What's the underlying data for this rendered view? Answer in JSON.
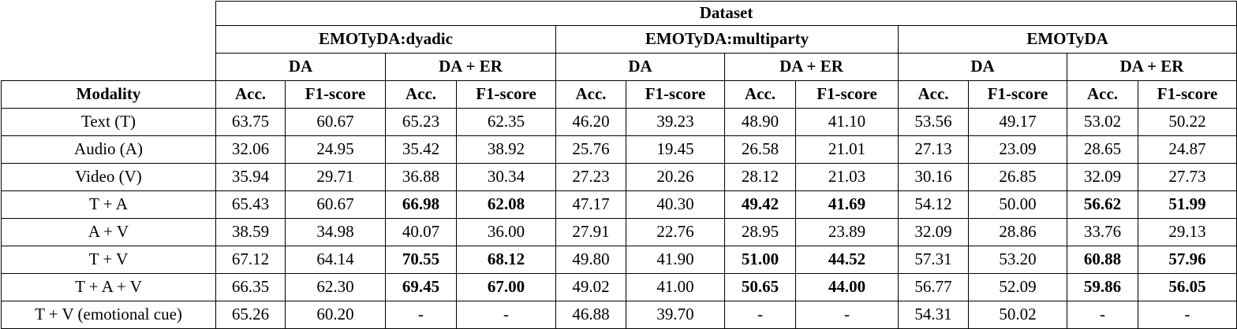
{
  "table": {
    "dataset_header": "Dataset",
    "modality_header": "Modality",
    "metric_headers": [
      "Acc.",
      "F1-score"
    ],
    "groups": [
      {
        "label": "EMOTyDA:dyadic",
        "subgroups": [
          "DA",
          "DA + ER"
        ]
      },
      {
        "label": "EMOTyDA:multiparty",
        "subgroups": [
          "DA",
          "DA + ER"
        ]
      },
      {
        "label": "EMOTyDA",
        "subgroups": [
          "DA",
          "DA + ER"
        ]
      }
    ],
    "rows": [
      {
        "modality": "Text (T)",
        "values": [
          "63.75",
          "60.67",
          "65.23",
          "62.35",
          "46.20",
          "39.23",
          "48.90",
          "41.10",
          "53.56",
          "49.17",
          "53.02",
          "50.22"
        ],
        "bold": [
          0,
          0,
          0,
          0,
          0,
          0,
          0,
          0,
          0,
          0,
          0,
          0
        ]
      },
      {
        "modality": "Audio (A)",
        "values": [
          "32.06",
          "24.95",
          "35.42",
          "38.92",
          "25.76",
          "19.45",
          "26.58",
          "21.01",
          "27.13",
          "23.09",
          "28.65",
          "24.87"
        ],
        "bold": [
          0,
          0,
          0,
          0,
          0,
          0,
          0,
          0,
          0,
          0,
          0,
          0
        ]
      },
      {
        "modality": "Video (V)",
        "values": [
          "35.94",
          "29.71",
          "36.88",
          "30.34",
          "27.23",
          "20.26",
          "28.12",
          "21.03",
          "30.16",
          "26.85",
          "32.09",
          "27.73"
        ],
        "bold": [
          0,
          0,
          0,
          0,
          0,
          0,
          0,
          0,
          0,
          0,
          0,
          0
        ]
      },
      {
        "modality": "T + A",
        "values": [
          "65.43",
          "60.67",
          "66.98",
          "62.08",
          "47.17",
          "40.30",
          "49.42",
          "41.69",
          "54.12",
          "50.00",
          "56.62",
          "51.99"
        ],
        "bold": [
          0,
          0,
          1,
          1,
          0,
          0,
          1,
          1,
          0,
          0,
          1,
          1
        ]
      },
      {
        "modality": "A + V",
        "values": [
          "38.59",
          "34.98",
          "40.07",
          "36.00",
          "27.91",
          "22.76",
          "28.95",
          "23.89",
          "32.09",
          "28.86",
          "33.76",
          "29.13"
        ],
        "bold": [
          0,
          0,
          0,
          0,
          0,
          0,
          0,
          0,
          0,
          0,
          0,
          0
        ]
      },
      {
        "modality": "T + V",
        "values": [
          "67.12",
          "64.14",
          "70.55",
          "68.12",
          "49.80",
          "41.90",
          "51.00",
          "44.52",
          "57.31",
          "53.20",
          "60.88",
          "57.96"
        ],
        "bold": [
          0,
          0,
          1,
          1,
          0,
          0,
          1,
          1,
          0,
          0,
          1,
          1
        ]
      },
      {
        "modality": "T + A + V",
        "values": [
          "66.35",
          "62.30",
          "69.45",
          "67.00",
          "49.02",
          "41.00",
          "50.65",
          "44.00",
          "56.77",
          "52.09",
          "59.86",
          "56.05"
        ],
        "bold": [
          0,
          0,
          1,
          1,
          0,
          0,
          1,
          1,
          0,
          0,
          1,
          1
        ]
      },
      {
        "modality": "T + V (emotional cue)",
        "values": [
          "65.26",
          "60.20",
          "-",
          "-",
          "46.88",
          "39.70",
          "-",
          "-",
          "54.31",
          "50.02",
          "-",
          "-"
        ],
        "bold": [
          0,
          0,
          0,
          0,
          0,
          0,
          0,
          0,
          0,
          0,
          0,
          0
        ]
      }
    ]
  }
}
